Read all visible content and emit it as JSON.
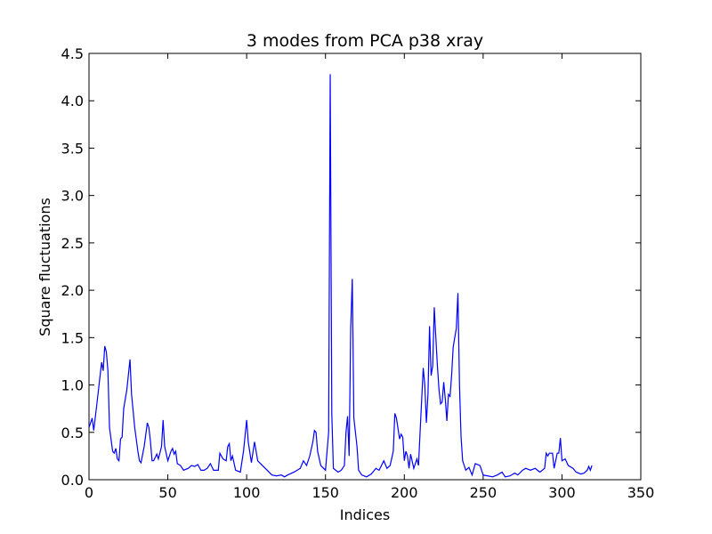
{
  "chart_data": {
    "type": "line",
    "title": "3 modes from PCA p38 xray",
    "x_label": "Indices",
    "y_label": "Square fluctuations",
    "x": [
      0,
      2,
      3,
      5,
      8,
      9,
      10,
      11,
      12,
      13,
      15,
      16,
      17,
      18,
      19,
      20,
      21,
      22,
      24,
      26,
      27,
      29,
      31,
      32,
      33,
      35,
      37,
      38,
      39,
      40,
      41,
      43,
      44,
      46,
      47,
      48,
      50,
      52,
      53,
      54,
      55,
      56,
      58,
      60,
      63,
      65,
      67,
      69,
      71,
      73,
      75,
      77,
      79,
      82,
      83,
      85,
      87,
      88,
      89,
      90,
      91,
      93,
      96,
      98,
      100,
      101,
      103,
      105,
      107,
      110,
      113,
      116,
      119,
      122,
      124,
      126,
      130,
      134,
      136,
      138,
      140,
      142,
      143,
      144,
      145,
      147,
      150,
      152,
      153,
      154,
      155,
      158,
      160,
      162,
      163,
      164,
      165,
      166,
      167,
      168,
      170,
      171,
      173,
      176,
      179,
      182,
      184,
      187,
      189,
      191,
      193,
      194,
      195,
      197,
      198,
      199,
      200,
      201,
      202,
      203,
      204,
      206,
      208,
      209,
      210,
      212,
      213,
      214,
      215,
      216,
      217,
      218,
      219,
      220,
      221,
      222,
      223,
      224,
      225,
      226,
      227,
      228,
      229,
      230,
      231,
      233,
      234,
      235,
      236,
      237,
      239,
      241,
      243,
      245,
      248,
      250,
      253,
      256,
      259,
      262,
      264,
      267,
      270,
      272,
      275,
      277,
      280,
      283,
      286,
      289,
      290,
      291,
      292,
      294,
      295,
      297,
      298,
      299,
      300,
      302,
      304,
      307,
      309,
      312,
      314,
      316,
      317,
      318,
      319
    ],
    "series": [
      {
        "name": "fluctuations",
        "color": "#0000ff",
        "values": [
          0.55,
          0.65,
          0.52,
          0.8,
          1.24,
          1.15,
          1.41,
          1.35,
          1.15,
          0.55,
          0.3,
          0.28,
          0.33,
          0.22,
          0.2,
          0.43,
          0.45,
          0.75,
          0.95,
          1.27,
          0.9,
          0.55,
          0.3,
          0.2,
          0.18,
          0.35,
          0.6,
          0.55,
          0.4,
          0.2,
          0.2,
          0.27,
          0.22,
          0.35,
          0.63,
          0.35,
          0.2,
          0.3,
          0.33,
          0.27,
          0.3,
          0.17,
          0.15,
          0.1,
          0.12,
          0.15,
          0.14,
          0.16,
          0.1,
          0.1,
          0.12,
          0.17,
          0.1,
          0.1,
          0.28,
          0.22,
          0.2,
          0.35,
          0.38,
          0.2,
          0.25,
          0.1,
          0.08,
          0.3,
          0.63,
          0.4,
          0.18,
          0.4,
          0.2,
          0.15,
          0.1,
          0.05,
          0.04,
          0.05,
          0.03,
          0.05,
          0.08,
          0.12,
          0.2,
          0.15,
          0.25,
          0.4,
          0.52,
          0.5,
          0.3,
          0.15,
          0.1,
          0.5,
          4.28,
          0.7,
          0.12,
          0.08,
          0.1,
          0.15,
          0.5,
          0.67,
          0.25,
          1.6,
          2.12,
          0.65,
          0.35,
          0.1,
          0.05,
          0.03,
          0.06,
          0.12,
          0.1,
          0.2,
          0.12,
          0.15,
          0.3,
          0.7,
          0.65,
          0.43,
          0.48,
          0.45,
          0.2,
          0.3,
          0.25,
          0.12,
          0.27,
          0.12,
          0.22,
          0.15,
          0.5,
          1.18,
          1.0,
          0.6,
          0.9,
          1.62,
          1.1,
          1.2,
          1.82,
          1.5,
          1.2,
          0.95,
          0.8,
          0.82,
          1.03,
          0.85,
          0.62,
          0.9,
          0.88,
          1.1,
          1.4,
          1.6,
          1.97,
          1.0,
          0.45,
          0.2,
          0.1,
          0.13,
          0.05,
          0.17,
          0.15,
          0.05,
          0.04,
          0.03,
          0.05,
          0.08,
          0.03,
          0.04,
          0.07,
          0.05,
          0.1,
          0.12,
          0.1,
          0.12,
          0.08,
          0.12,
          0.28,
          0.25,
          0.28,
          0.28,
          0.12,
          0.28,
          0.28,
          0.44,
          0.2,
          0.22,
          0.15,
          0.12,
          0.08,
          0.06,
          0.07,
          0.1,
          0.14,
          0.1,
          0.15
        ]
      }
    ],
    "xlim": [
      0,
      350
    ],
    "xticks": [
      0,
      50,
      100,
      150,
      200,
      250,
      300,
      350
    ],
    "ylim": [
      0,
      4.5
    ],
    "yticks": [
      {
        "value": 0,
        "label": "0.0"
      },
      0.5,
      {
        "value": 1,
        "label": "1.0"
      },
      1.5,
      {
        "value": 2,
        "label": "2.0"
      },
      2.5,
      {
        "value": 3,
        "label": "3.0"
      },
      3.5,
      {
        "value": 4,
        "label": "4.0"
      },
      4.5
    ]
  }
}
